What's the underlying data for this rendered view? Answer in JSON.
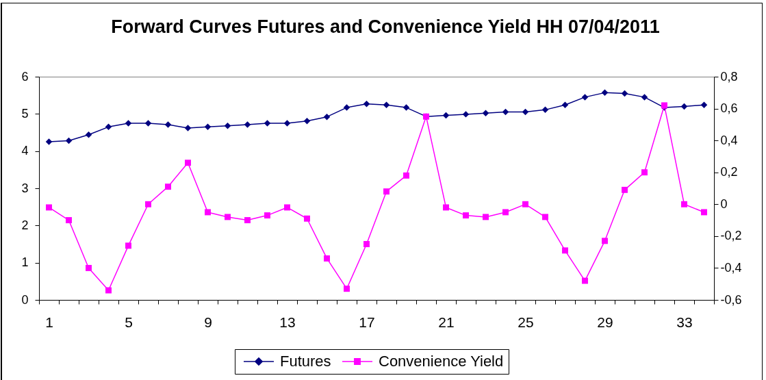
{
  "chart_data": {
    "type": "line",
    "title": "Forward Curves Futures and Convenience Yield HH 07/04/2011",
    "categories": [
      "1",
      null,
      null,
      null,
      "5",
      null,
      null,
      null,
      "9",
      null,
      null,
      null,
      "13",
      null,
      null,
      null,
      "17",
      null,
      null,
      null,
      "21",
      null,
      null,
      null,
      "25",
      null,
      null,
      null,
      "29",
      null,
      null,
      null,
      "33",
      null
    ],
    "series": [
      {
        "name": "Futures",
        "color": "#000080",
        "marker": "diamond",
        "values": [
          4.25,
          4.28,
          4.44,
          4.65,
          4.75,
          4.75,
          4.71,
          4.62,
          4.65,
          4.68,
          4.71,
          4.75,
          4.75,
          4.81,
          4.92,
          5.17,
          5.27,
          5.24,
          5.17,
          4.93,
          4.96,
          4.99,
          5.02,
          5.05,
          5.05,
          5.11,
          5.24,
          5.45,
          5.57,
          5.55,
          5.45,
          5.17,
          5.2,
          5.24
        ]
      },
      {
        "name": "Convenience Yield",
        "color": "#ff00ff",
        "marker": "square",
        "axis": "y2",
        "values": [
          -0.02,
          -0.1,
          -0.4,
          -0.54,
          -0.26,
          0.0,
          0.11,
          0.26,
          -0.05,
          -0.08,
          -0.1,
          -0.07,
          -0.02,
          -0.09,
          -0.34,
          -0.53,
          -0.25,
          0.08,
          0.18,
          0.55,
          -0.02,
          -0.07,
          -0.08,
          -0.05,
          0.0,
          -0.08,
          -0.29,
          -0.48,
          -0.23,
          0.09,
          0.2,
          0.62,
          0.0,
          -0.05
        ]
      }
    ],
    "ylim": [
      0,
      6
    ],
    "yticks": [
      0,
      1,
      2,
      3,
      4,
      5,
      6
    ],
    "y2lim": [
      -0.6,
      0.8
    ],
    "y2ticks": [
      {
        "value": -0.6,
        "label": "-0,6"
      },
      {
        "value": -0.4,
        "label": "-0,4"
      },
      {
        "value": -0.2,
        "label": "-0,2"
      },
      0,
      {
        "value": 0.2,
        "label": "0,2"
      },
      {
        "value": 0.4,
        "label": "0,4"
      },
      {
        "value": 0.6,
        "label": "0,6"
      },
      {
        "value": 0.8,
        "label": "0,8"
      }
    ],
    "legend": "bottom",
    "line_style": "solid"
  }
}
